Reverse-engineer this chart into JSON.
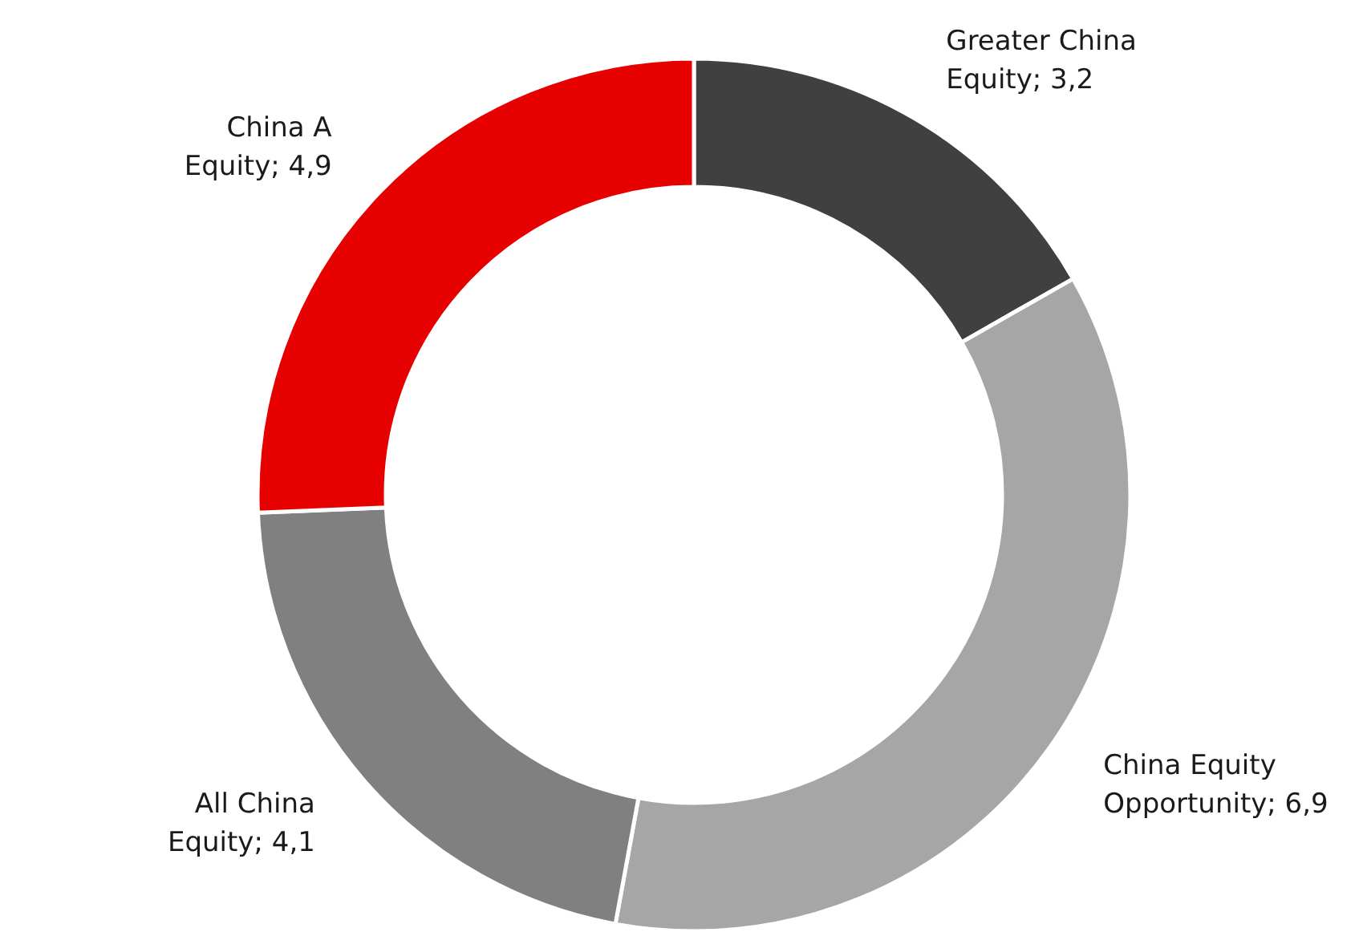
{
  "chart_data": {
    "type": "donut",
    "categories": [
      "Greater China Equity",
      "China Equity Opportunity",
      "All China Equity",
      "China A Equity"
    ],
    "values": [
      3.2,
      6.9,
      4.1,
      4.9
    ],
    "value_labels": [
      "3,2",
      "6,9",
      "4,1",
      "4,9"
    ],
    "colors": [
      "#404040",
      "#a6a6a6",
      "#808080",
      "#e60000"
    ],
    "legend": false
  }
}
